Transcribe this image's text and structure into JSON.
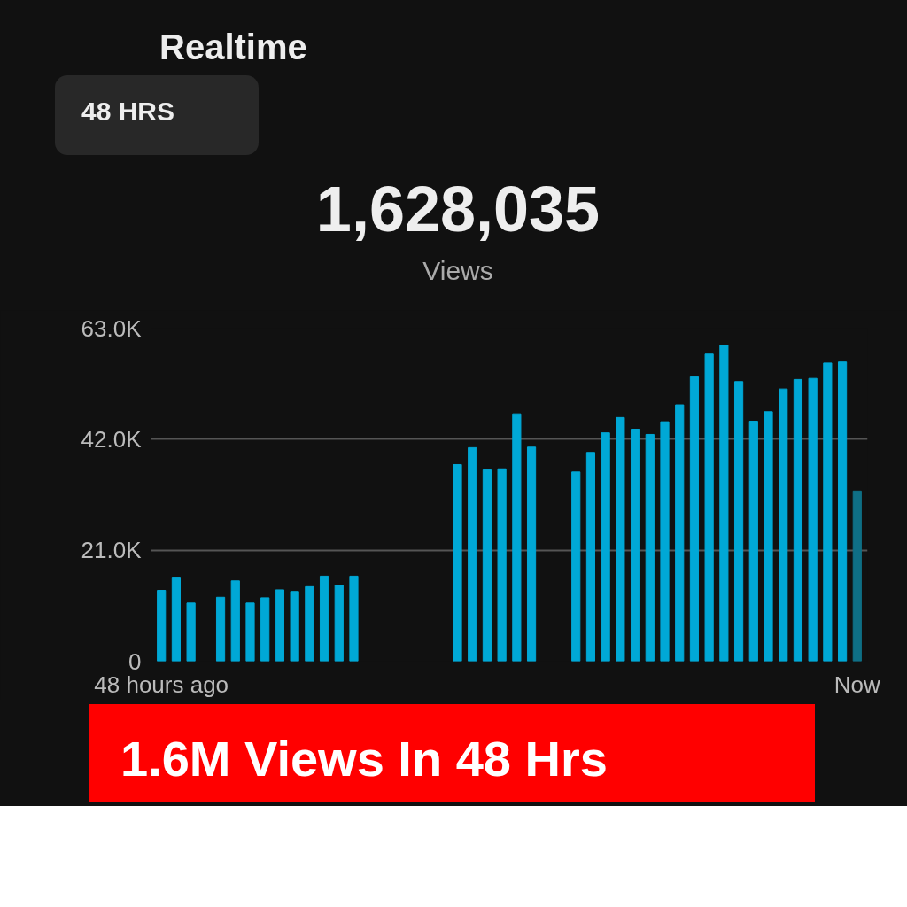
{
  "chart_data": {
    "type": "bar",
    "title": "Realtime",
    "annotations": [
      "48 HRS",
      "1,628,035",
      "Views",
      "1.6M Views In 48 Hrs"
    ],
    "categories": [
      "48 hours ago",
      null,
      null,
      null,
      null,
      null,
      null,
      null,
      null,
      null,
      null,
      null,
      null,
      null,
      null,
      null,
      null,
      null,
      null,
      null,
      null,
      null,
      null,
      null,
      null,
      null,
      null,
      null,
      null,
      null,
      null,
      null,
      null,
      null,
      null,
      null,
      null,
      null,
      null,
      null,
      null,
      null,
      null,
      null,
      null,
      null,
      null,
      "Now"
    ],
    "values": [
      13400,
      15900,
      11000,
      null,
      12100,
      15200,
      11000,
      12000,
      13500,
      13200,
      14100,
      16100,
      14400,
      16100,
      null,
      null,
      null,
      null,
      null,
      null,
      37200,
      40400,
      36200,
      36400,
      46800,
      40500,
      null,
      null,
      35800,
      39500,
      43200,
      46100,
      43900,
      42900,
      45300,
      48500,
      53800,
      58100,
      59800,
      52900,
      45400,
      47200,
      51500,
      53300,
      53500,
      56400,
      56600,
      32200
    ],
    "colors": [
      "#00a8d6",
      "#00a8d6",
      "#00a8d6",
      "#00a8d6",
      "#00a8d6",
      "#00a8d6",
      "#00a8d6",
      "#00a8d6",
      "#00a8d6",
      "#00a8d6",
      "#00a8d6",
      "#00a8d6",
      "#00a8d6",
      "#00a8d6",
      "#00a8d6",
      "#00a8d6",
      "#00a8d6",
      "#00a8d6",
      "#00a8d6",
      "#00a8d6",
      "#00a8d6",
      "#00a8d6",
      "#00a8d6",
      "#00a8d6",
      "#00a8d6",
      "#00a8d6",
      "#00a8d6",
      "#00a8d6",
      "#00a8d6",
      "#00a8d6",
      "#00a8d6",
      "#00a8d6",
      "#00a8d6",
      "#00a8d6",
      "#00a8d6",
      "#00a8d6",
      "#00a8d6",
      "#00a8d6",
      "#00a8d6",
      "#00a8d6",
      "#00a8d6",
      "#00a8d6",
      "#00a8d6",
      "#00a8d6",
      "#00a8d6",
      "#00a8d6",
      "#00a8d6",
      "#0f6f86"
    ],
    "ylim": [
      0,
      63000
    ],
    "yticks": [
      0,
      {
        "value": 21000,
        "label": "21.0K"
      },
      {
        "value": 42000,
        "label": "42.0K"
      },
      {
        "value": 63000,
        "label": "63.0K"
      }
    ],
    "grid": "y"
  }
}
